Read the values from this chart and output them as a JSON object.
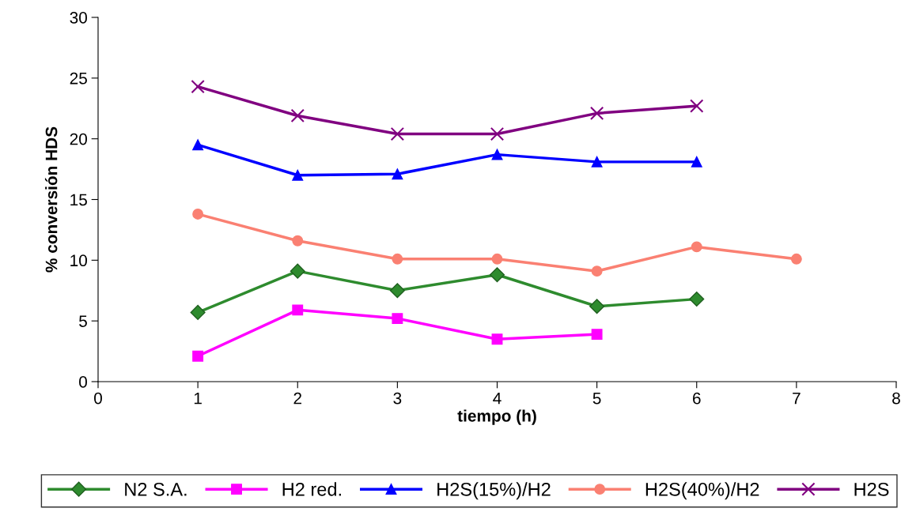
{
  "chart_data": {
    "type": "line",
    "xlabel": "tiempo (h)",
    "ylabel": "% conversión HDS",
    "xlim": [
      0,
      8
    ],
    "xticks": [
      0,
      1,
      2,
      3,
      4,
      5,
      6,
      7,
      8
    ],
    "ylim": [
      0,
      30
    ],
    "yticks": [
      0,
      5,
      10,
      15,
      20,
      25,
      30
    ],
    "grid": false,
    "legend": "bottom",
    "line_style": "solid",
    "series": [
      {
        "name": "N2 S.A.",
        "color": "#2e8b2e",
        "marker": "diamond",
        "x": [
          1,
          2,
          3,
          4,
          5,
          6
        ],
        "values": [
          5.7,
          9.1,
          7.5,
          8.8,
          6.2,
          6.8
        ]
      },
      {
        "name": "H2 red.",
        "color": "#ff00ff",
        "marker": "square",
        "x": [
          1,
          2,
          3,
          4,
          5
        ],
        "values": [
          2.1,
          5.9,
          5.2,
          3.5,
          3.9
        ]
      },
      {
        "name": "H2S(15%)/H2",
        "color": "#0000ff",
        "marker": "triangle",
        "x": [
          1,
          2,
          3,
          4,
          5,
          6
        ],
        "values": [
          19.5,
          17.0,
          17.1,
          18.7,
          18.1,
          18.1
        ]
      },
      {
        "name": "H2S(40%)/H2",
        "color": "#fa8072",
        "marker": "circle",
        "x": [
          1,
          2,
          3,
          4,
          5,
          6,
          7
        ],
        "values": [
          13.8,
          11.6,
          10.1,
          10.1,
          9.1,
          11.1,
          10.1
        ]
      },
      {
        "name": "H2S",
        "color": "#800080",
        "marker": "cross",
        "x": [
          1,
          2,
          3,
          4,
          5,
          6
        ],
        "values": [
          24.3,
          21.9,
          20.4,
          20.4,
          22.1,
          22.7
        ]
      }
    ]
  }
}
